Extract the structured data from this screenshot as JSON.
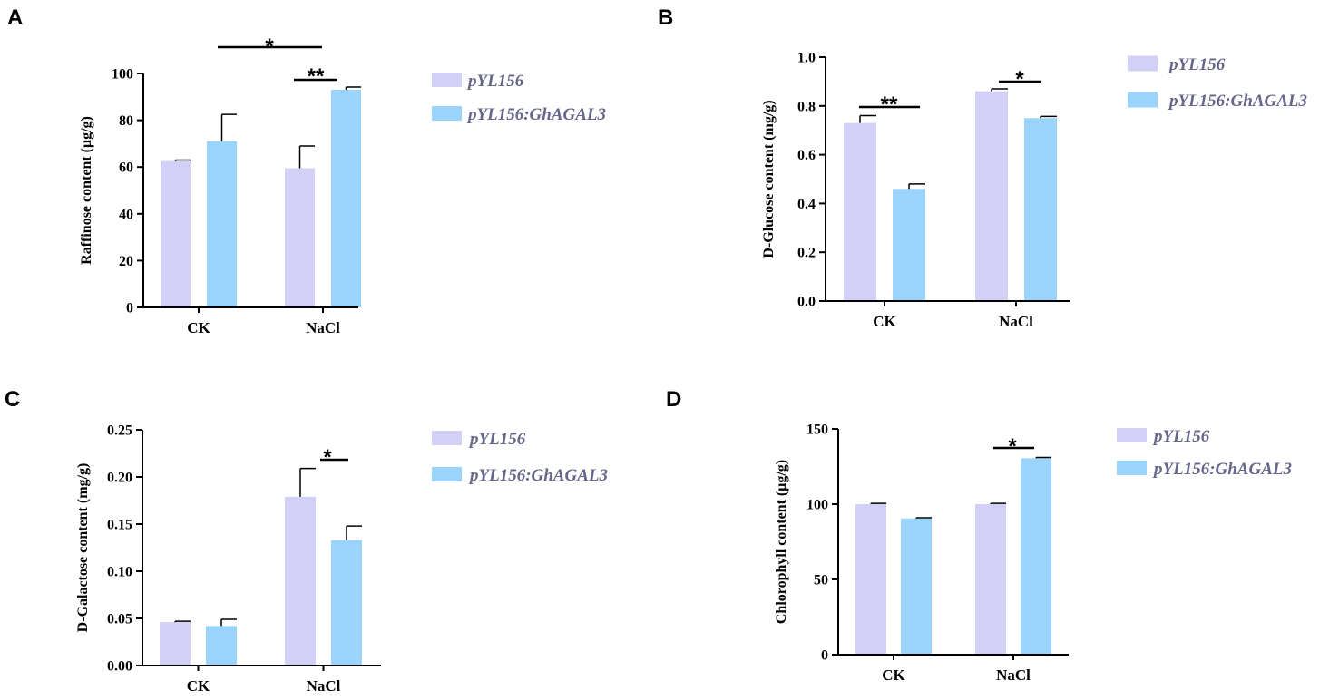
{
  "colors": {
    "series1": "#d2d0f7",
    "series2": "#9ad3fb",
    "axis": "#000000",
    "legend_text": "#66668a"
  },
  "legend": [
    "pYL156",
    "pYL156:GhAGAL3"
  ],
  "chart_data": [
    {
      "panel": "A",
      "type": "bar",
      "ylabel": "Raffinose content  (μg/g)",
      "ylim": [
        0,
        100
      ],
      "yticks": [
        "0",
        "20",
        "40",
        "60",
        "80",
        "100"
      ],
      "categories": [
        "CK",
        "NaCl"
      ],
      "series": [
        {
          "name": "pYL156",
          "values": [
            62.5,
            59.5
          ],
          "errors": [
            0.5,
            9.5
          ]
        },
        {
          "name": "pYL156:GhAGAL3",
          "values": [
            71,
            93
          ],
          "errors": [
            11.5,
            1.2
          ]
        }
      ],
      "significance": [
        {
          "label": "*",
          "from": [
            0,
            1
          ],
          "to": [
            1,
            0
          ]
        },
        {
          "label": "**",
          "from": [
            1,
            0
          ],
          "to": [
            1,
            1
          ]
        }
      ]
    },
    {
      "panel": "B",
      "type": "bar",
      "ylabel": "D-Glucose content (mg/g)",
      "ylim": [
        0,
        1.0
      ],
      "yticks": [
        "0.0",
        "0.2",
        "0.4",
        "0.6",
        "0.8",
        "1.0"
      ],
      "categories": [
        "CK",
        "NaCl"
      ],
      "series": [
        {
          "name": "pYL156",
          "values": [
            0.73,
            0.86
          ],
          "errors": [
            0.03,
            0.01
          ]
        },
        {
          "name": "pYL156:GhAGAL3",
          "values": [
            0.46,
            0.75
          ],
          "errors": [
            0.02,
            0.007
          ]
        }
      ],
      "significance": [
        {
          "label": "**",
          "from": [
            0,
            0
          ],
          "to": [
            0,
            1
          ]
        },
        {
          "label": "*",
          "from": [
            1,
            0
          ],
          "to": [
            1,
            1
          ]
        }
      ]
    },
    {
      "panel": "C",
      "type": "bar",
      "ylabel": "D-Galactose content (mg/g)",
      "ylim": [
        0,
        0.25
      ],
      "yticks": [
        "0.00",
        "0.05",
        "0.10",
        "0.15",
        "0.20",
        "0.25"
      ],
      "categories": [
        "CK",
        "NaCl"
      ],
      "series": [
        {
          "name": "pYL156",
          "values": [
            0.046,
            0.179
          ],
          "errors": [
            0.001,
            0.03
          ]
        },
        {
          "name": "pYL156:GhAGAL3",
          "values": [
            0.042,
            0.133
          ],
          "errors": [
            0.007,
            0.015
          ]
        }
      ],
      "significance": [
        {
          "label": "*",
          "from": [
            1,
            0
          ],
          "to": [
            1,
            1
          ]
        }
      ]
    },
    {
      "panel": "D",
      "type": "bar",
      "ylabel": "Chlorophyll content  (μg/g)",
      "ylim": [
        0,
        150
      ],
      "yticks": [
        "0",
        "50",
        "100",
        "150"
      ],
      "categories": [
        "CK",
        "NaCl"
      ],
      "series": [
        {
          "name": "pYL156",
          "values": [
            100,
            100
          ],
          "errors": [
            0.5,
            0.5
          ]
        },
        {
          "name": "pYL156:GhAGAL3",
          "values": [
            90.5,
            130.5
          ],
          "errors": [
            0.5,
            0.5
          ]
        }
      ],
      "significance": [
        {
          "label": "*",
          "from": [
            1,
            0
          ],
          "to": [
            1,
            1
          ]
        }
      ]
    }
  ]
}
